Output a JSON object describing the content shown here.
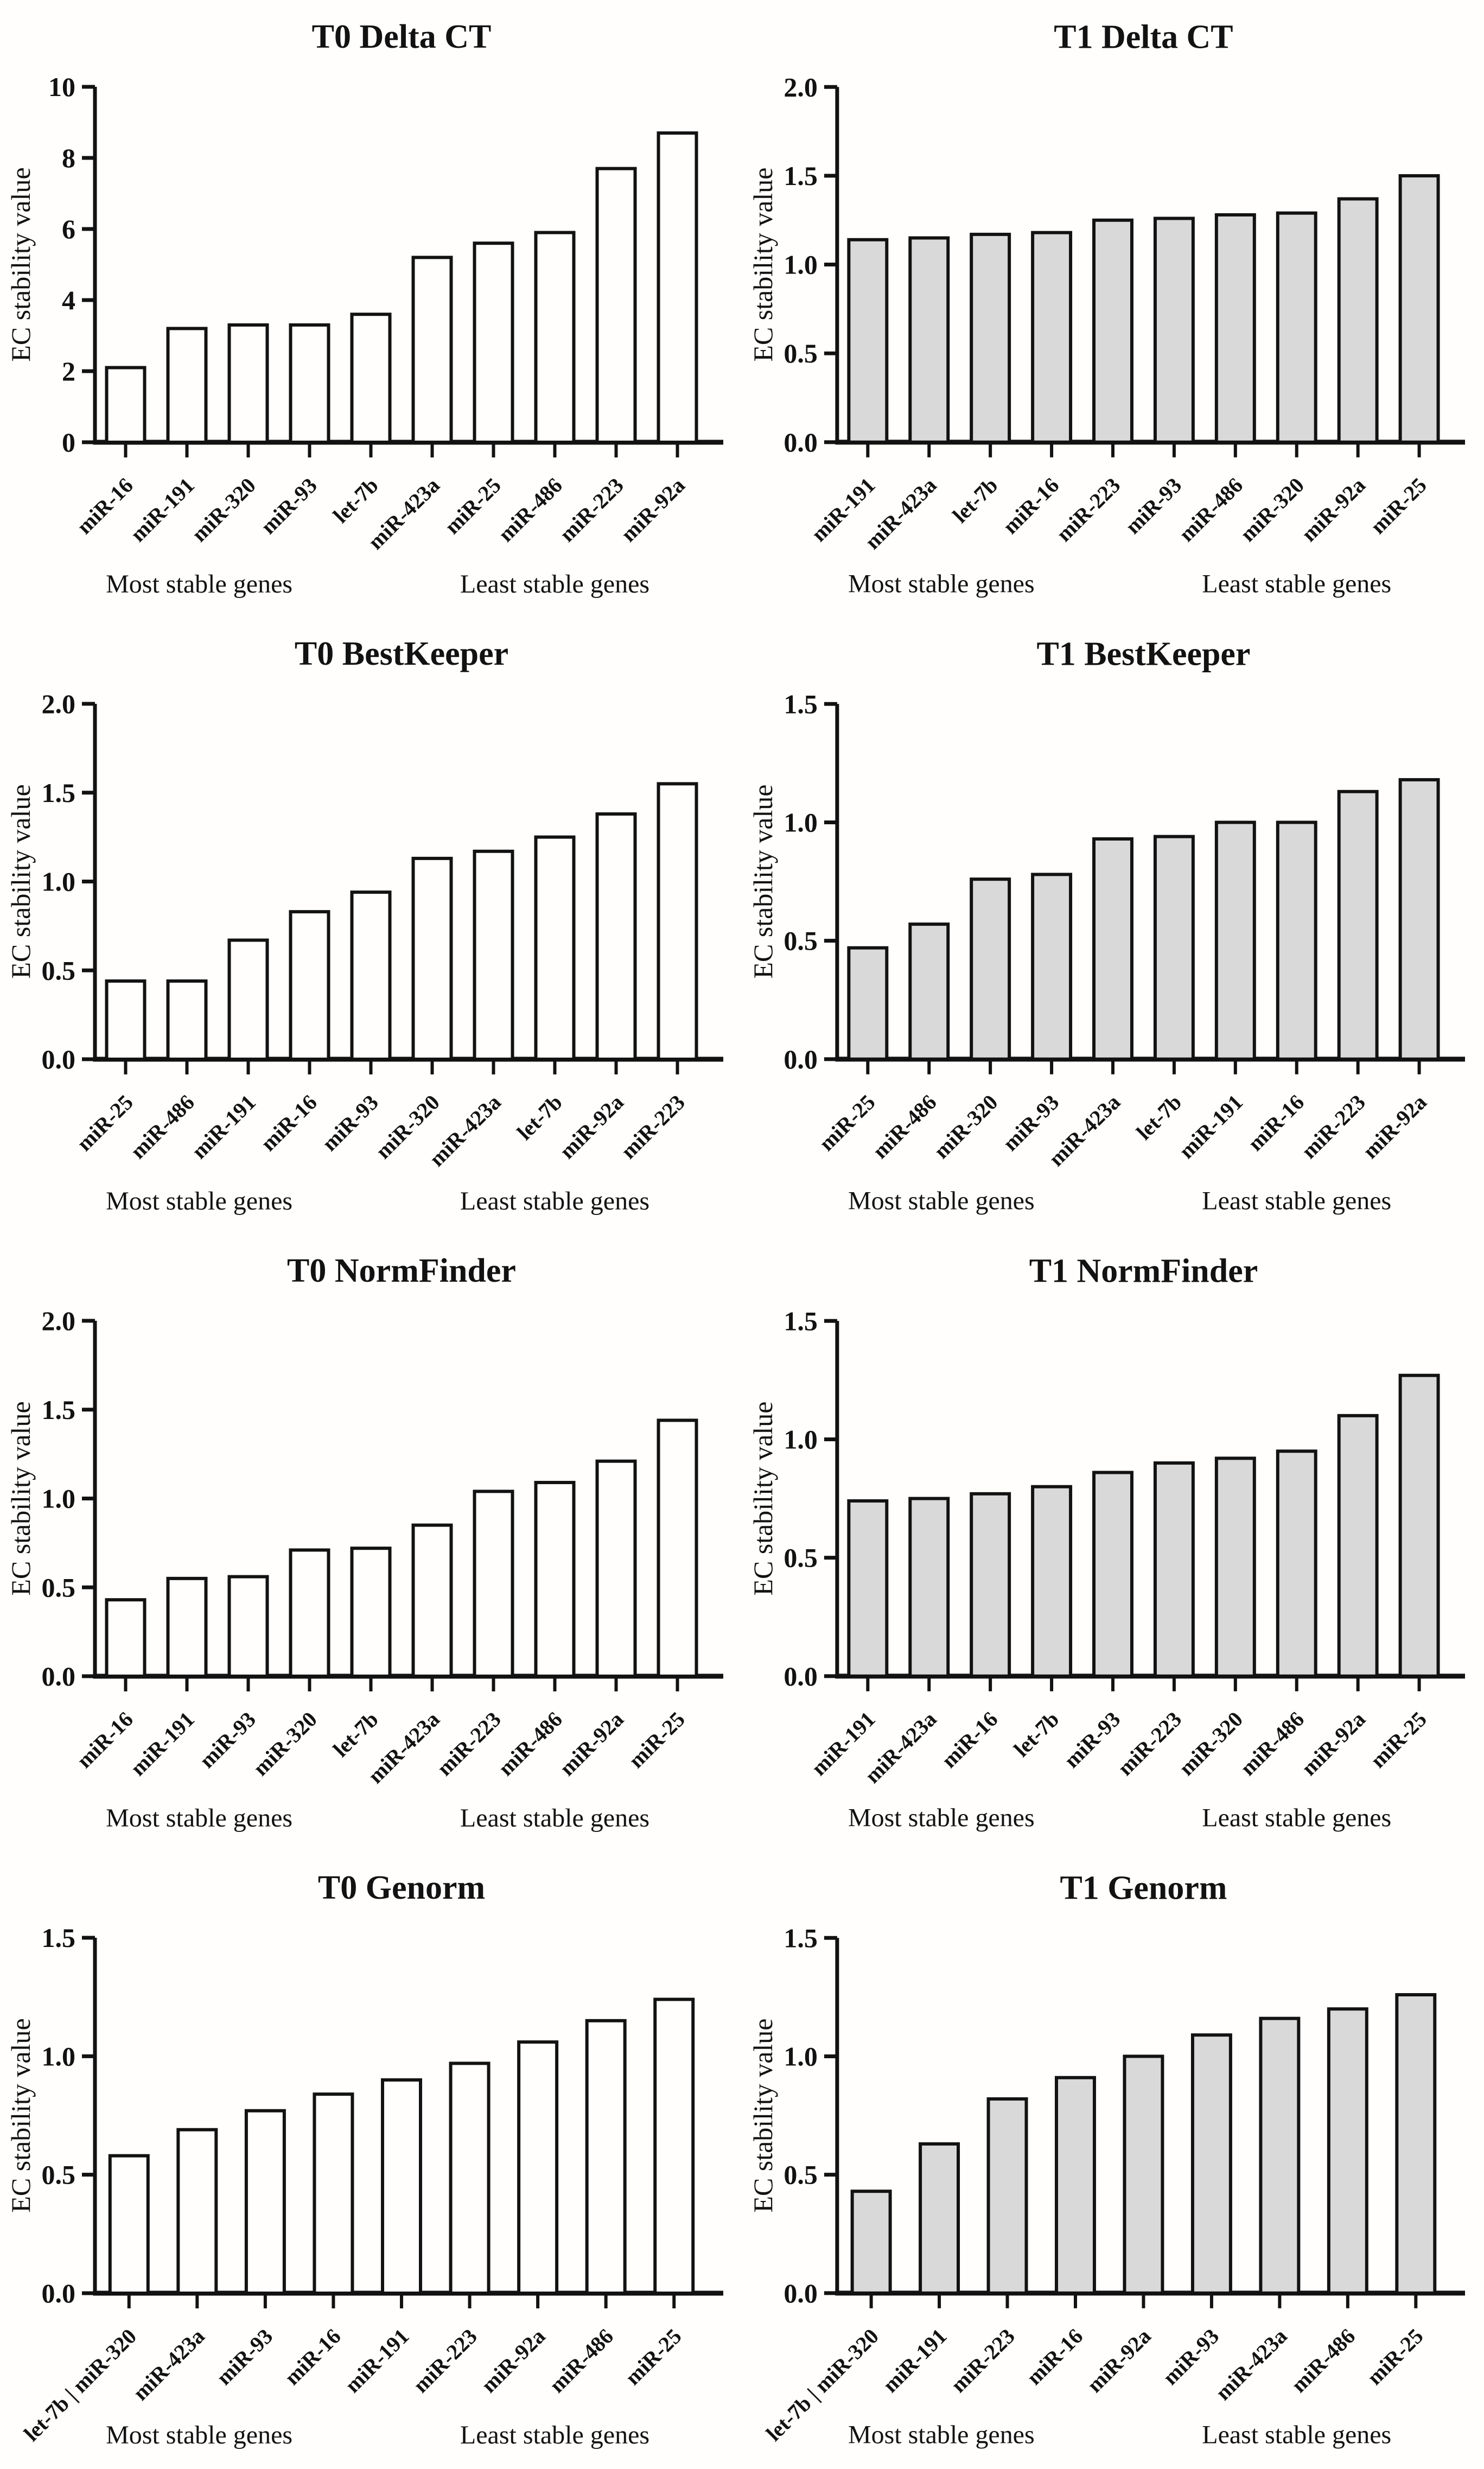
{
  "figure": {
    "ylabel": "EC stability value",
    "captions": {
      "left": "Most stable genes",
      "right": "Least stable genes"
    },
    "colors": {
      "ink": "#121212",
      "bar_white": "#fffefc",
      "bar_gray": "#d9d9d9",
      "background": "#fffefc"
    }
  },
  "chart_data": [
    {
      "id": "t0-delta-ct",
      "type": "bar",
      "title": "T0 Delta CT",
      "xlabel": "",
      "ylabel": "EC stability value",
      "bar_style": "white",
      "ylim": [
        0,
        10
      ],
      "grid": false,
      "yticks": [
        {
          "v": 0,
          "label": "0"
        },
        {
          "v": 2,
          "label": "2"
        },
        {
          "v": 4,
          "label": "4"
        },
        {
          "v": 6,
          "label": "6"
        },
        {
          "v": 8,
          "label": "8"
        },
        {
          "v": 10,
          "label": "10"
        }
      ],
      "categories": [
        "miR-16",
        "miR-191",
        "miR-320",
        "miR-93",
        "let-7b",
        "miR-423a",
        "miR-25",
        "miR-486",
        "miR-223",
        "miR-92a"
      ],
      "values": [
        2.1,
        3.2,
        3.3,
        3.3,
        3.6,
        5.2,
        5.6,
        5.9,
        7.7,
        8.7
      ]
    },
    {
      "id": "t1-delta-ct",
      "type": "bar",
      "title": "T1 Delta CT",
      "xlabel": "",
      "ylabel": "EC stability value",
      "bar_style": "gray",
      "ylim": [
        0,
        2
      ],
      "grid": false,
      "yticks": [
        {
          "v": 0,
          "label": "0.0"
        },
        {
          "v": 0.5,
          "label": "0.5"
        },
        {
          "v": 1.0,
          "label": "1.0"
        },
        {
          "v": 1.5,
          "label": "1.5"
        },
        {
          "v": 2.0,
          "label": "2.0"
        }
      ],
      "categories": [
        "miR-191",
        "miR-423a",
        "let-7b",
        "miR-16",
        "miR-223",
        "miR-93",
        "miR-486",
        "miR-320",
        "miR-92a",
        "miR-25"
      ],
      "values": [
        1.14,
        1.15,
        1.17,
        1.18,
        1.25,
        1.26,
        1.28,
        1.29,
        1.37,
        1.5
      ]
    },
    {
      "id": "t0-bestkeeper",
      "type": "bar",
      "title": "T0 BestKeeper",
      "xlabel": "",
      "ylabel": "EC stability value",
      "bar_style": "white",
      "ylim": [
        0,
        2
      ],
      "grid": false,
      "yticks": [
        {
          "v": 0,
          "label": "0.0"
        },
        {
          "v": 0.5,
          "label": "0.5"
        },
        {
          "v": 1.0,
          "label": "1.0"
        },
        {
          "v": 1.5,
          "label": "1.5"
        },
        {
          "v": 2.0,
          "label": "2.0"
        }
      ],
      "categories": [
        "miR-25",
        "miR-486",
        "miR-191",
        "miR-16",
        "miR-93",
        "miR-320",
        "miR-423a",
        "let-7b",
        "miR-92a",
        "miR-223"
      ],
      "values": [
        0.44,
        0.44,
        0.67,
        0.83,
        0.94,
        1.13,
        1.17,
        1.25,
        1.38,
        1.55
      ]
    },
    {
      "id": "t1-bestkeeper",
      "type": "bar",
      "title": "T1 BestKeeper",
      "xlabel": "",
      "ylabel": "EC stability value",
      "bar_style": "gray",
      "ylim": [
        0,
        1.5
      ],
      "grid": false,
      "yticks": [
        {
          "v": 0,
          "label": "0.0"
        },
        {
          "v": 0.5,
          "label": "0.5"
        },
        {
          "v": 1.0,
          "label": "1.0"
        },
        {
          "v": 1.5,
          "label": "1.5"
        }
      ],
      "categories": [
        "miR-25",
        "miR-486",
        "miR-320",
        "miR-93",
        "miR-423a",
        "let-7b",
        "miR-191",
        "miR-16",
        "miR-223",
        "miR-92a"
      ],
      "values": [
        0.47,
        0.57,
        0.76,
        0.78,
        0.93,
        0.94,
        1.0,
        1.0,
        1.13,
        1.18
      ]
    },
    {
      "id": "t0-normfinder",
      "type": "bar",
      "title": "T0 NormFinder",
      "xlabel": "",
      "ylabel": "EC stability value",
      "bar_style": "white",
      "ylim": [
        0,
        2
      ],
      "grid": false,
      "yticks": [
        {
          "v": 0,
          "label": "0.0"
        },
        {
          "v": 0.5,
          "label": "0.5"
        },
        {
          "v": 1.0,
          "label": "1.0"
        },
        {
          "v": 1.5,
          "label": "1.5"
        },
        {
          "v": 2.0,
          "label": "2.0"
        }
      ],
      "categories": [
        "miR-16",
        "miR-191",
        "miR-93",
        "miR-320",
        "let-7b",
        "miR-423a",
        "miR-223",
        "miR-486",
        "miR-92a",
        "miR-25"
      ],
      "values": [
        0.43,
        0.55,
        0.56,
        0.71,
        0.72,
        0.85,
        1.04,
        1.09,
        1.21,
        1.44
      ]
    },
    {
      "id": "t1-normfinder",
      "type": "bar",
      "title": "T1 NormFinder",
      "xlabel": "",
      "ylabel": "EC stability value",
      "bar_style": "gray",
      "ylim": [
        0,
        1.5
      ],
      "grid": false,
      "yticks": [
        {
          "v": 0,
          "label": "0.0"
        },
        {
          "v": 0.5,
          "label": "0.5"
        },
        {
          "v": 1.0,
          "label": "1.0"
        },
        {
          "v": 1.5,
          "label": "1.5"
        }
      ],
      "categories": [
        "miR-191",
        "miR-423a",
        "miR-16",
        "let-7b",
        "miR-93",
        "miR-223",
        "miR-320",
        "miR-486",
        "miR-92a",
        "miR-25"
      ],
      "values": [
        0.74,
        0.75,
        0.77,
        0.8,
        0.86,
        0.9,
        0.92,
        0.95,
        1.1,
        1.27
      ]
    },
    {
      "id": "t0-genorm",
      "type": "bar",
      "title": "T0 Genorm",
      "xlabel": "",
      "ylabel": "EC stability value",
      "bar_style": "white",
      "ylim": [
        0,
        1.5
      ],
      "grid": false,
      "yticks": [
        {
          "v": 0,
          "label": "0.0"
        },
        {
          "v": 0.5,
          "label": "0.5"
        },
        {
          "v": 1.0,
          "label": "1.0"
        },
        {
          "v": 1.5,
          "label": "1.5"
        }
      ],
      "categories": [
        "let-7b | miR-320",
        "miR-423a",
        "miR-93",
        "miR-16",
        "miR-191",
        "miR-223",
        "miR-92a",
        "miR-486",
        "miR-25"
      ],
      "values": [
        0.58,
        0.69,
        0.77,
        0.84,
        0.9,
        0.97,
        1.06,
        1.15,
        1.24
      ]
    },
    {
      "id": "t1-genorm",
      "type": "bar",
      "title": "T1 Genorm",
      "xlabel": "",
      "ylabel": "EC stability value",
      "bar_style": "gray",
      "ylim": [
        0,
        1.5
      ],
      "grid": false,
      "yticks": [
        {
          "v": 0,
          "label": "0.0"
        },
        {
          "v": 0.5,
          "label": "0.5"
        },
        {
          "v": 1.0,
          "label": "1.0"
        },
        {
          "v": 1.5,
          "label": "1.5"
        }
      ],
      "categories": [
        "let-7b | miR-320",
        "miR-191",
        "miR-223",
        "miR-16",
        "miR-92a",
        "miR-93",
        "miR-423a",
        "miR-486",
        "miR-25"
      ],
      "values": [
        0.43,
        0.63,
        0.82,
        0.91,
        1.0,
        1.09,
        1.16,
        1.2,
        1.26
      ]
    }
  ]
}
